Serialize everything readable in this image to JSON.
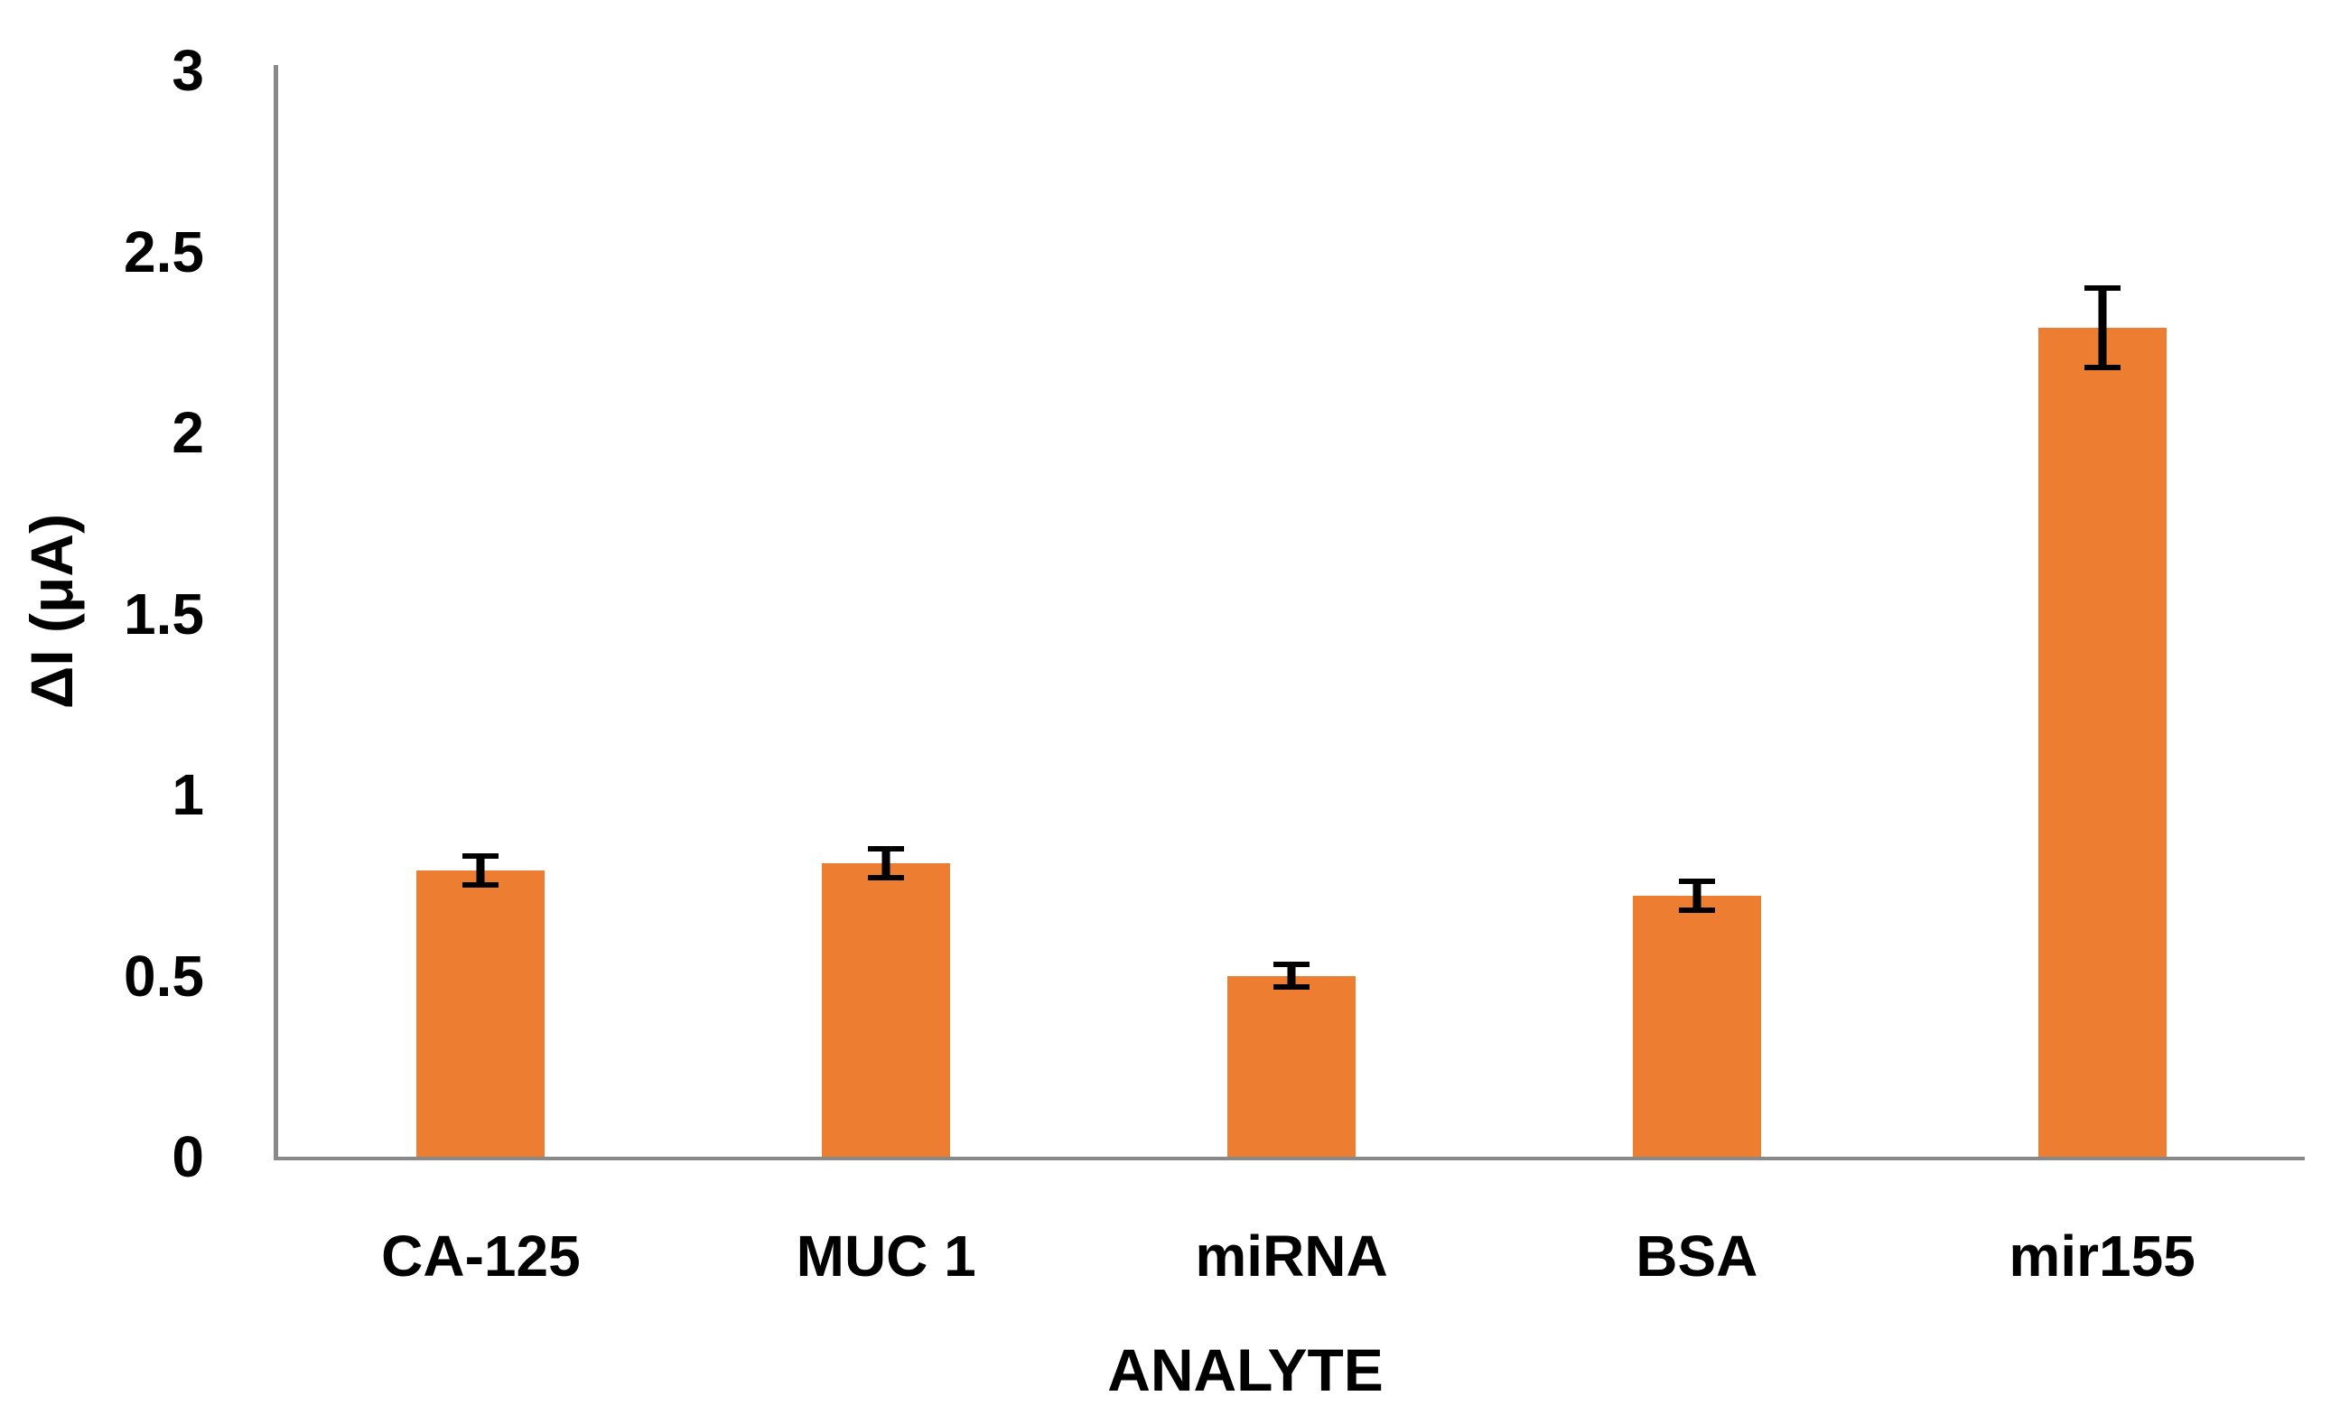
{
  "chart_data": {
    "type": "bar",
    "categories": [
      "CA-125",
      "MUC 1",
      "miRNA",
      "BSA",
      "mir155"
    ],
    "values": [
      0.79,
      0.81,
      0.5,
      0.72,
      2.29
    ],
    "errors": [
      0.04,
      0.04,
      0.03,
      0.04,
      0.11
    ],
    "title": "",
    "xlabel": "ANALYTE",
    "ylabel": "ΔI (μA)",
    "ytick_labels": [
      "0",
      "0.5",
      "1",
      "1.5",
      "2",
      "2.5",
      "3"
    ],
    "ytick_values": [
      0,
      0.5,
      1,
      1.5,
      2,
      2.5,
      3
    ],
    "ylim": [
      0,
      3
    ],
    "grid": false,
    "legend": false,
    "bar_color": "#ED7D31",
    "axis_color": "#898989",
    "error_bar_color": "#000000",
    "text_color": "#000000",
    "background_color": "#FFFFFF"
  }
}
